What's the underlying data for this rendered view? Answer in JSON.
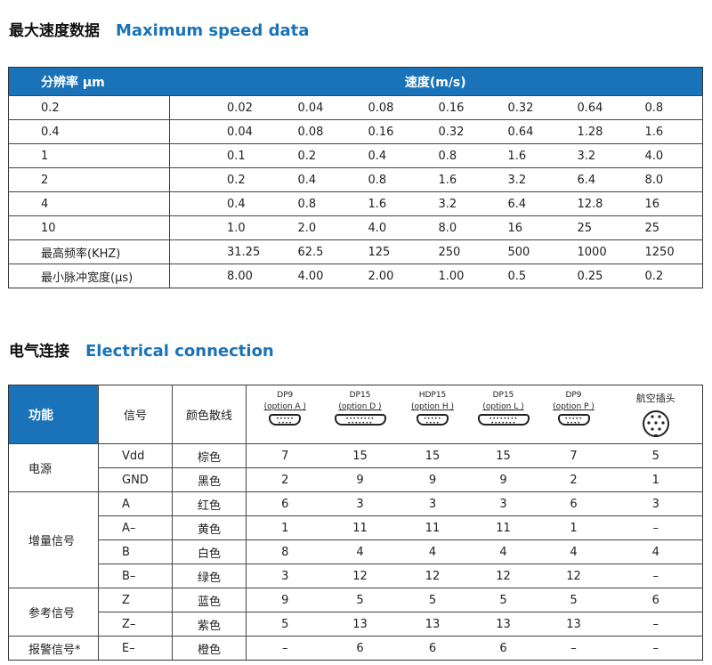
{
  "speed": {
    "title_cn": "最大速度数据",
    "title_en": "Maximum speed data",
    "header": {
      "resolution": "分辨率 μm",
      "speed": "速度(m/s)"
    },
    "rows": [
      {
        "label": "0.2",
        "values": [
          "0.02",
          "0.04",
          "0.08",
          "0.16",
          "0.32",
          "0.64",
          "0.8"
        ]
      },
      {
        "label": "0.4",
        "values": [
          "0.04",
          "0.08",
          "0.16",
          "0.32",
          "0.64",
          "1.28",
          "1.6"
        ]
      },
      {
        "label": "1",
        "values": [
          "0.1",
          "0.2",
          "0.4",
          "0.8",
          "1.6",
          "3.2",
          "4.0"
        ]
      },
      {
        "label": "2",
        "values": [
          "0.2",
          "0.4",
          "0.8",
          "1.6",
          "3.2",
          "6.4",
          "8.0"
        ]
      },
      {
        "label": "4",
        "values": [
          "0.4",
          "0.8",
          "1.6",
          "3.2",
          "6.4",
          "12.8",
          "16"
        ]
      },
      {
        "label": "10",
        "values": [
          "1.0",
          "2.0",
          "4.0",
          "8.0",
          "16",
          "25",
          "25"
        ]
      },
      {
        "label": "最高频率(KHZ)",
        "values": [
          "31.25",
          "62.5",
          "125",
          "250",
          "500",
          "1000",
          "1250"
        ]
      },
      {
        "label": "最小脉冲宽度(μs)",
        "values": [
          "8.00",
          "4.00",
          "2.00",
          "1.00",
          "0.5",
          "0.25",
          "0.2"
        ]
      }
    ]
  },
  "elec": {
    "title_cn": "电气连接",
    "title_en": "Electrical connection",
    "header": {
      "function": "功能",
      "signal": "信号",
      "color": "颜色散线",
      "connectors": [
        {
          "name": "DP9",
          "option": "(option A )",
          "icon": "dsub-9"
        },
        {
          "name": "DP15",
          "option": "(option D )",
          "icon": "dsub-15"
        },
        {
          "name": "HDP15",
          "option": "(option H )",
          "icon": "hd-dsub-15"
        },
        {
          "name": "DP15",
          "option": "(option L )",
          "icon": "dsub-15"
        },
        {
          "name": "DP9",
          "option": "(option P )",
          "icon": "dsub-9"
        },
        {
          "name": "航空插头",
          "option": "",
          "icon": "circular-connector"
        }
      ]
    },
    "groups": [
      {
        "name": "电源",
        "rows": [
          {
            "signal": "Vdd",
            "color": "棕色",
            "pins": [
              "7",
              "15",
              "15",
              "15",
              "7",
              "5"
            ]
          },
          {
            "signal": "GND",
            "color": "黑色",
            "pins": [
              "2",
              "9",
              "9",
              "9",
              "2",
              "1"
            ]
          }
        ]
      },
      {
        "name": "增量信号",
        "rows": [
          {
            "signal": "A",
            "color": "红色",
            "pins": [
              "6",
              "3",
              "3",
              "3",
              "6",
              "3"
            ]
          },
          {
            "signal": "A–",
            "color": "黄色",
            "pins": [
              "1",
              "11",
              "11",
              "11",
              "1",
              "–"
            ]
          },
          {
            "signal": "B",
            "color": "白色",
            "pins": [
              "8",
              "4",
              "4",
              "4",
              "4",
              "4"
            ]
          },
          {
            "signal": "B–",
            "color": "绿色",
            "pins": [
              "3",
              "12",
              "12",
              "12",
              "12",
              "–"
            ]
          }
        ]
      },
      {
        "name": "参考信号",
        "rows": [
          {
            "signal": "Z",
            "color": "蓝色",
            "pins": [
              "9",
              "5",
              "5",
              "5",
              "5",
              "6"
            ]
          },
          {
            "signal": "Z–",
            "color": "紫色",
            "pins": [
              "5",
              "13",
              "13",
              "13",
              "13",
              "–"
            ]
          }
        ]
      },
      {
        "name": "报警信号*",
        "rows": [
          {
            "signal": "E–",
            "color": "橙色",
            "pins": [
              "–",
              "6",
              "6",
              "6",
              "–",
              "–"
            ]
          }
        ]
      }
    ]
  }
}
